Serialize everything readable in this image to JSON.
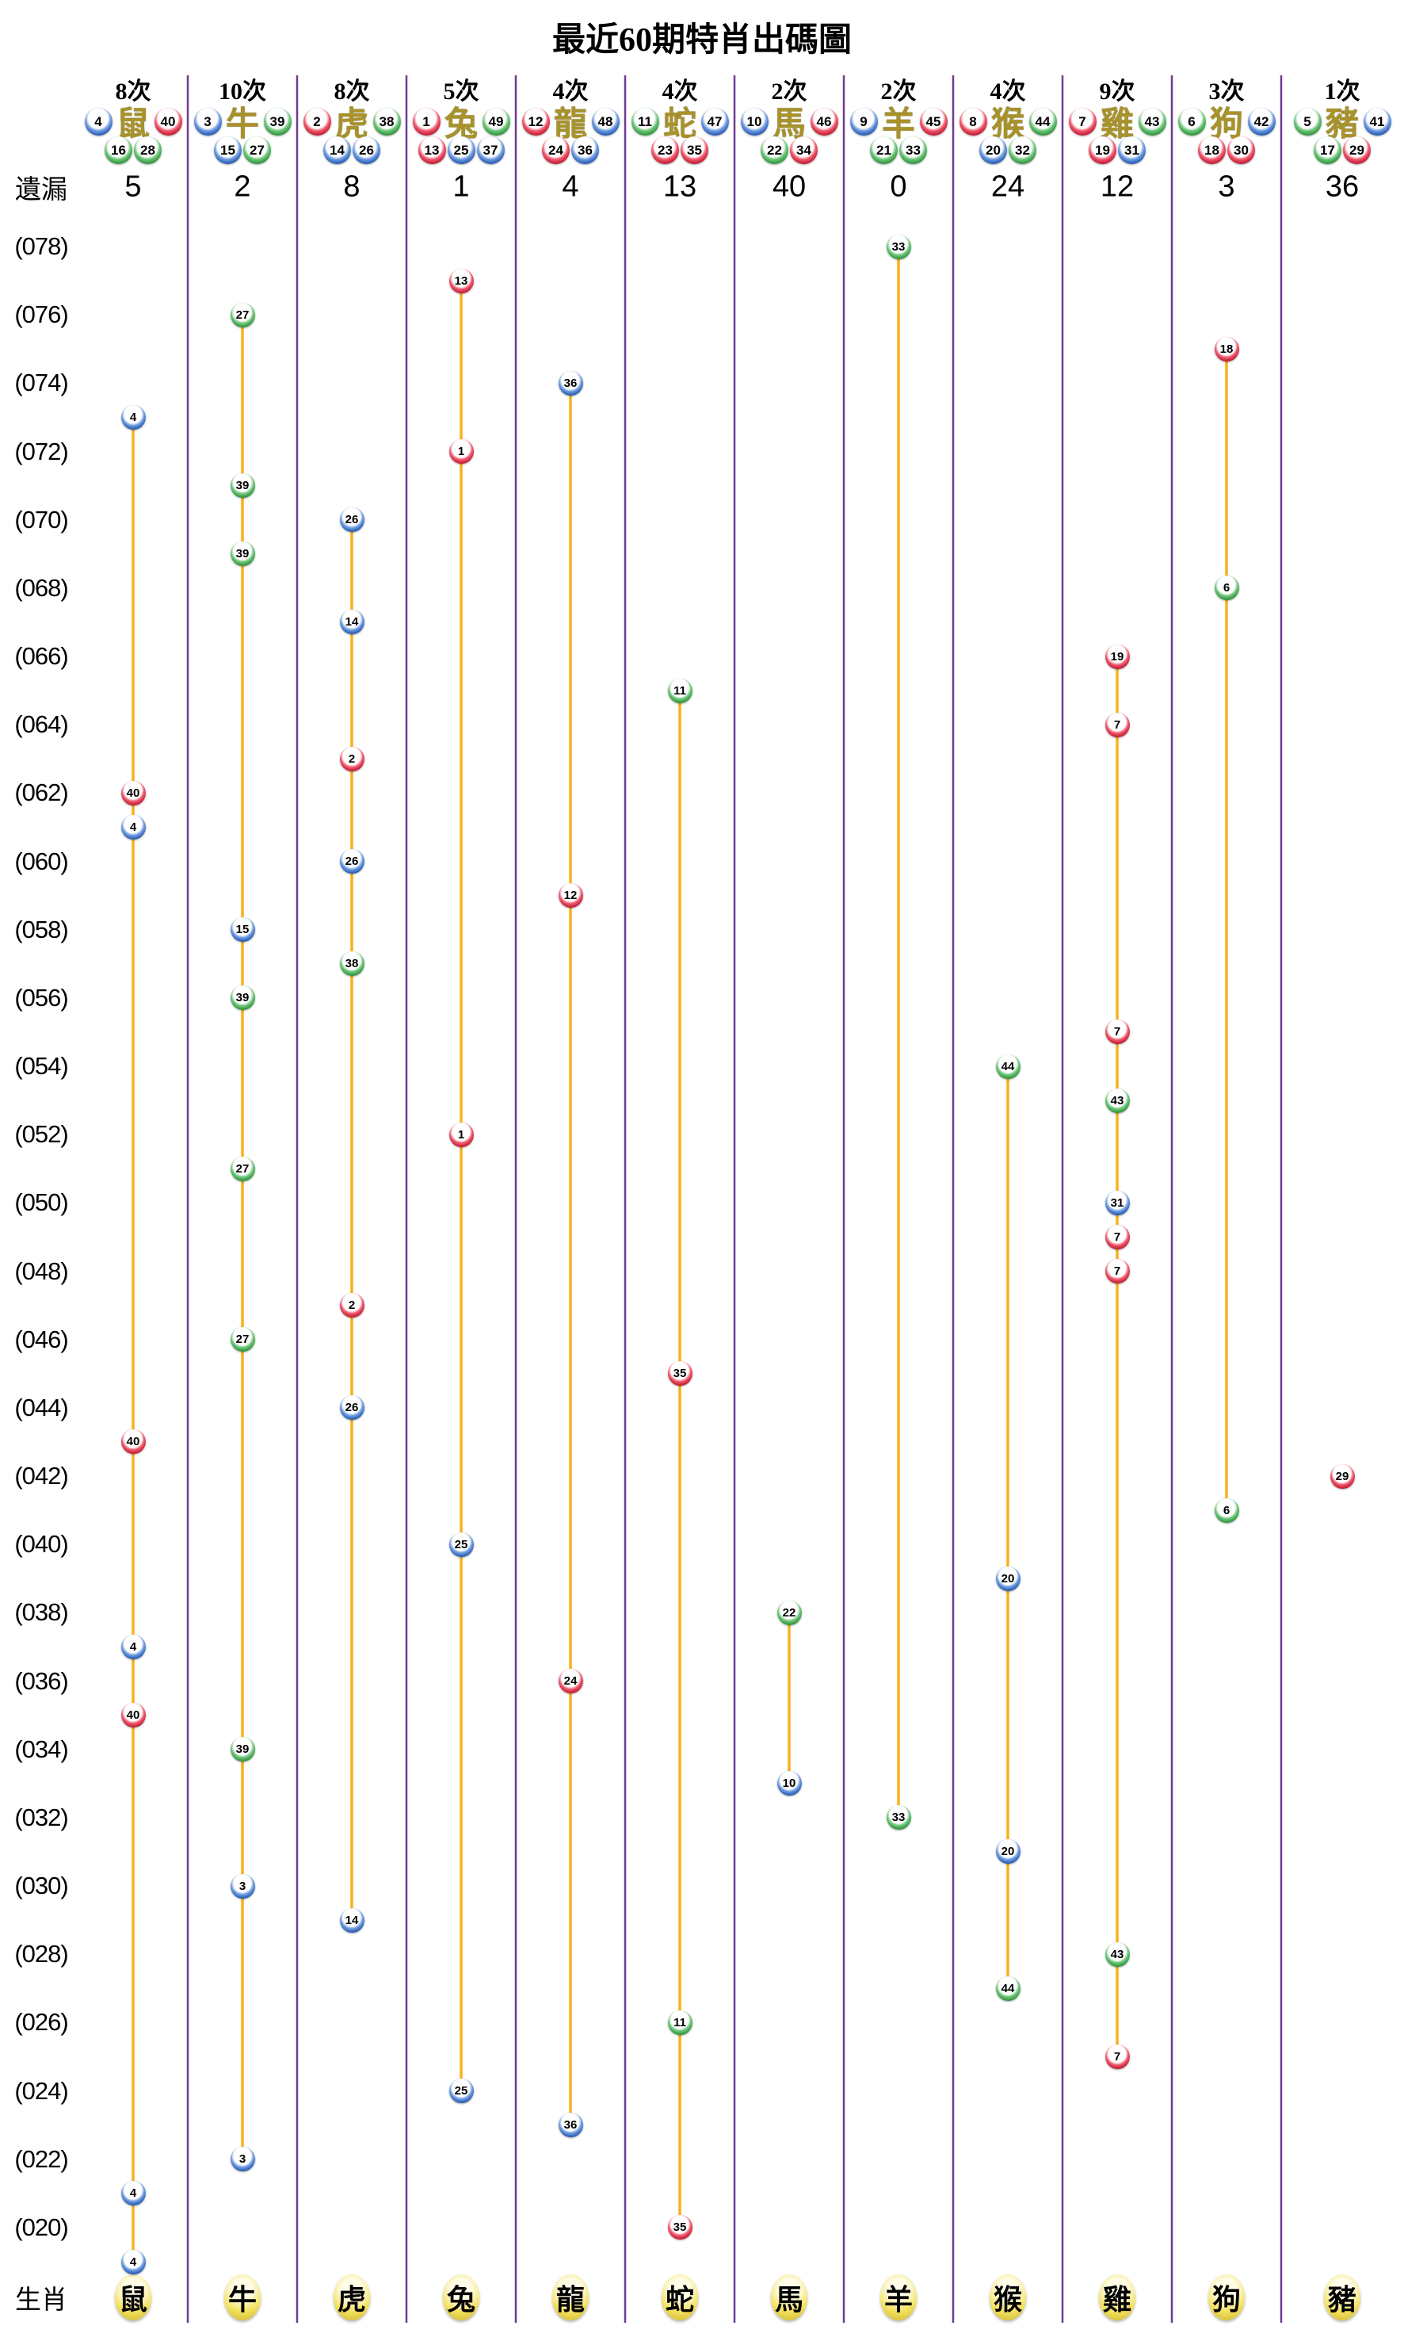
{
  "title": "最近60期特肖出碼圖",
  "labels": {
    "missing": "遺漏",
    "zodiac_row": "生肖"
  },
  "colors": {
    "separator": "#6f3a92",
    "line": "#f8b11c",
    "gold_char": "#a8922a",
    "zodiac_ellipse": "#f3e15e",
    "ball": {
      "red": {
        "base": "#c01830",
        "light": "#ef5a6e",
        "dark": "#871021"
      },
      "blue": {
        "base": "#2257b0",
        "light": "#6f9ce0",
        "dark": "#143a78"
      },
      "green": {
        "base": "#2b9237",
        "light": "#6fc67b",
        "dark": "#1c6325"
      }
    }
  },
  "row_labels": [
    "(078)",
    "(076)",
    "(074)",
    "(072)",
    "(070)",
    "(068)",
    "(066)",
    "(064)",
    "(062)",
    "(060)",
    "(058)",
    "(056)",
    "(054)",
    "(052)",
    "(050)",
    "(048)",
    "(046)",
    "(044)",
    "(042)",
    "(040)",
    "(038)",
    "(036)",
    "(034)",
    "(032)",
    "(030)",
    "(028)",
    "(026)",
    "(024)",
    "(022)",
    "(020)"
  ],
  "chart_data": {
    "type": "scatter",
    "title": "最近60期特肖出碼圖",
    "issue_min": 19,
    "issue_max": 78,
    "x_categories": [
      "鼠",
      "牛",
      "虎",
      "兔",
      "龍",
      "蛇",
      "馬",
      "羊",
      "猴",
      "雞",
      "狗",
      "豬"
    ],
    "columns": [
      {
        "zodiac": "鼠",
        "times": "8次",
        "missing": "5",
        "numbers": [
          {
            "n": "4",
            "color": "blue"
          },
          {
            "n": "16",
            "color": "green"
          },
          {
            "n": "28",
            "color": "green"
          },
          {
            "n": "40",
            "color": "red"
          }
        ],
        "draws": [
          {
            "issue": 73,
            "n": "4",
            "color": "blue"
          },
          {
            "issue": 62,
            "n": "40",
            "color": "red"
          },
          {
            "issue": 61,
            "n": "4",
            "color": "blue"
          },
          {
            "issue": 43,
            "n": "40",
            "color": "red"
          },
          {
            "issue": 37,
            "n": "4",
            "color": "blue"
          },
          {
            "issue": 35,
            "n": "40",
            "color": "red"
          },
          {
            "issue": 21,
            "n": "4",
            "color": "blue"
          },
          {
            "issue": 19,
            "n": "4",
            "color": "blue"
          }
        ]
      },
      {
        "zodiac": "牛",
        "times": "10次",
        "missing": "2",
        "numbers": [
          {
            "n": "3",
            "color": "blue"
          },
          {
            "n": "15",
            "color": "blue"
          },
          {
            "n": "27",
            "color": "green"
          },
          {
            "n": "39",
            "color": "green"
          }
        ],
        "draws": [
          {
            "issue": 76,
            "n": "27",
            "color": "green"
          },
          {
            "issue": 71,
            "n": "39",
            "color": "green"
          },
          {
            "issue": 69,
            "n": "39",
            "color": "green"
          },
          {
            "issue": 58,
            "n": "15",
            "color": "blue"
          },
          {
            "issue": 56,
            "n": "39",
            "color": "green"
          },
          {
            "issue": 51,
            "n": "27",
            "color": "green"
          },
          {
            "issue": 46,
            "n": "27",
            "color": "green"
          },
          {
            "issue": 34,
            "n": "39",
            "color": "green"
          },
          {
            "issue": 30,
            "n": "3",
            "color": "blue"
          },
          {
            "issue": 22,
            "n": "3",
            "color": "blue"
          }
        ]
      },
      {
        "zodiac": "虎",
        "times": "8次",
        "missing": "8",
        "numbers": [
          {
            "n": "2",
            "color": "red"
          },
          {
            "n": "14",
            "color": "blue"
          },
          {
            "n": "26",
            "color": "blue"
          },
          {
            "n": "38",
            "color": "green"
          }
        ],
        "draws": [
          {
            "issue": 70,
            "n": "26",
            "color": "blue"
          },
          {
            "issue": 67,
            "n": "14",
            "color": "blue"
          },
          {
            "issue": 63,
            "n": "2",
            "color": "red"
          },
          {
            "issue": 60,
            "n": "26",
            "color": "blue"
          },
          {
            "issue": 57,
            "n": "38",
            "color": "green"
          },
          {
            "issue": 47,
            "n": "2",
            "color": "red"
          },
          {
            "issue": 44,
            "n": "26",
            "color": "blue"
          },
          {
            "issue": 29,
            "n": "14",
            "color": "blue"
          }
        ]
      },
      {
        "zodiac": "兔",
        "times": "5次",
        "missing": "1",
        "numbers": [
          {
            "n": "1",
            "color": "red"
          },
          {
            "n": "13",
            "color": "red"
          },
          {
            "n": "25",
            "color": "blue"
          },
          {
            "n": "37",
            "color": "blue"
          },
          {
            "n": "49",
            "color": "green"
          }
        ],
        "draws": [
          {
            "issue": 77,
            "n": "13",
            "color": "red"
          },
          {
            "issue": 72,
            "n": "1",
            "color": "red"
          },
          {
            "issue": 52,
            "n": "1",
            "color": "red"
          },
          {
            "issue": 40,
            "n": "25",
            "color": "blue"
          },
          {
            "issue": 24,
            "n": "25",
            "color": "blue"
          }
        ]
      },
      {
        "zodiac": "龍",
        "times": "4次",
        "missing": "4",
        "numbers": [
          {
            "n": "12",
            "color": "red"
          },
          {
            "n": "24",
            "color": "red"
          },
          {
            "n": "36",
            "color": "blue"
          },
          {
            "n": "48",
            "color": "blue"
          }
        ],
        "draws": [
          {
            "issue": 74,
            "n": "36",
            "color": "blue"
          },
          {
            "issue": 59,
            "n": "12",
            "color": "red"
          },
          {
            "issue": 36,
            "n": "24",
            "color": "red"
          },
          {
            "issue": 23,
            "n": "36",
            "color": "blue"
          }
        ]
      },
      {
        "zodiac": "蛇",
        "times": "4次",
        "missing": "13",
        "numbers": [
          {
            "n": "11",
            "color": "green"
          },
          {
            "n": "23",
            "color": "red"
          },
          {
            "n": "35",
            "color": "red"
          },
          {
            "n": "47",
            "color": "blue"
          }
        ],
        "draws": [
          {
            "issue": 65,
            "n": "11",
            "color": "green"
          },
          {
            "issue": 45,
            "n": "35",
            "color": "red"
          },
          {
            "issue": 26,
            "n": "11",
            "color": "green"
          },
          {
            "issue": 20,
            "n": "35",
            "color": "red"
          }
        ]
      },
      {
        "zodiac": "馬",
        "times": "2次",
        "missing": "40",
        "numbers": [
          {
            "n": "10",
            "color": "blue"
          },
          {
            "n": "22",
            "color": "green"
          },
          {
            "n": "34",
            "color": "red"
          },
          {
            "n": "46",
            "color": "red"
          }
        ],
        "draws": [
          {
            "issue": 38,
            "n": "22",
            "color": "green"
          },
          {
            "issue": 33,
            "n": "10",
            "color": "blue"
          }
        ]
      },
      {
        "zodiac": "羊",
        "times": "2次",
        "missing": "0",
        "numbers": [
          {
            "n": "9",
            "color": "blue"
          },
          {
            "n": "21",
            "color": "green"
          },
          {
            "n": "33",
            "color": "green"
          },
          {
            "n": "45",
            "color": "red"
          }
        ],
        "draws": [
          {
            "issue": 78,
            "n": "33",
            "color": "green"
          },
          {
            "issue": 32,
            "n": "33",
            "color": "green"
          }
        ]
      },
      {
        "zodiac": "猴",
        "times": "4次",
        "missing": "24",
        "numbers": [
          {
            "n": "8",
            "color": "red"
          },
          {
            "n": "20",
            "color": "blue"
          },
          {
            "n": "32",
            "color": "green"
          },
          {
            "n": "44",
            "color": "green"
          }
        ],
        "draws": [
          {
            "issue": 54,
            "n": "44",
            "color": "green"
          },
          {
            "issue": 39,
            "n": "20",
            "color": "blue"
          },
          {
            "issue": 31,
            "n": "20",
            "color": "blue"
          },
          {
            "issue": 27,
            "n": "44",
            "color": "green"
          }
        ]
      },
      {
        "zodiac": "雞",
        "times": "9次",
        "missing": "12",
        "numbers": [
          {
            "n": "7",
            "color": "red"
          },
          {
            "n": "19",
            "color": "red"
          },
          {
            "n": "31",
            "color": "blue"
          },
          {
            "n": "43",
            "color": "green"
          }
        ],
        "draws": [
          {
            "issue": 66,
            "n": "19",
            "color": "red"
          },
          {
            "issue": 64,
            "n": "7",
            "color": "red"
          },
          {
            "issue": 55,
            "n": "7",
            "color": "red"
          },
          {
            "issue": 53,
            "n": "43",
            "color": "green"
          },
          {
            "issue": 50,
            "n": "31",
            "color": "blue"
          },
          {
            "issue": 49,
            "n": "7",
            "color": "red"
          },
          {
            "issue": 48,
            "n": "7",
            "color": "red"
          },
          {
            "issue": 28,
            "n": "43",
            "color": "green"
          },
          {
            "issue": 25,
            "n": "7",
            "color": "red"
          }
        ]
      },
      {
        "zodiac": "狗",
        "times": "3次",
        "missing": "3",
        "numbers": [
          {
            "n": "6",
            "color": "green"
          },
          {
            "n": "18",
            "color": "red"
          },
          {
            "n": "30",
            "color": "red"
          },
          {
            "n": "42",
            "color": "blue"
          }
        ],
        "draws": [
          {
            "issue": 75,
            "n": "18",
            "color": "red"
          },
          {
            "issue": 68,
            "n": "6",
            "color": "green"
          },
          {
            "issue": 41,
            "n": "6",
            "color": "green"
          }
        ]
      },
      {
        "zodiac": "豬",
        "times": "1次",
        "missing": "36",
        "numbers": [
          {
            "n": "5",
            "color": "green"
          },
          {
            "n": "17",
            "color": "green"
          },
          {
            "n": "29",
            "color": "red"
          },
          {
            "n": "41",
            "color": "blue"
          }
        ],
        "draws": [
          {
            "issue": 42,
            "n": "29",
            "color": "red"
          }
        ]
      }
    ]
  }
}
